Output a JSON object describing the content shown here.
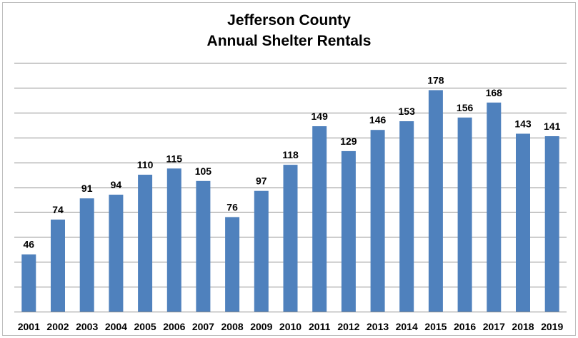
{
  "chart_data": {
    "type": "bar",
    "title": "Jefferson County",
    "subtitle": "Annual Shelter Rentals",
    "categories": [
      "2001",
      "2002",
      "2003",
      "2004",
      "2005",
      "2006",
      "2007",
      "2008",
      "2009",
      "2010",
      "2011",
      "2012",
      "2013",
      "2014",
      "2015",
      "2016",
      "2017",
      "2018",
      "2019"
    ],
    "values": [
      46,
      74,
      91,
      94,
      110,
      115,
      105,
      76,
      97,
      118,
      149,
      129,
      146,
      153,
      178,
      156,
      168,
      143,
      141
    ],
    "ylim": [
      0,
      200
    ],
    "grid": true,
    "legend": "none",
    "colors": {
      "bar": "#4f81bd",
      "grid": "#8c8c8c"
    }
  }
}
